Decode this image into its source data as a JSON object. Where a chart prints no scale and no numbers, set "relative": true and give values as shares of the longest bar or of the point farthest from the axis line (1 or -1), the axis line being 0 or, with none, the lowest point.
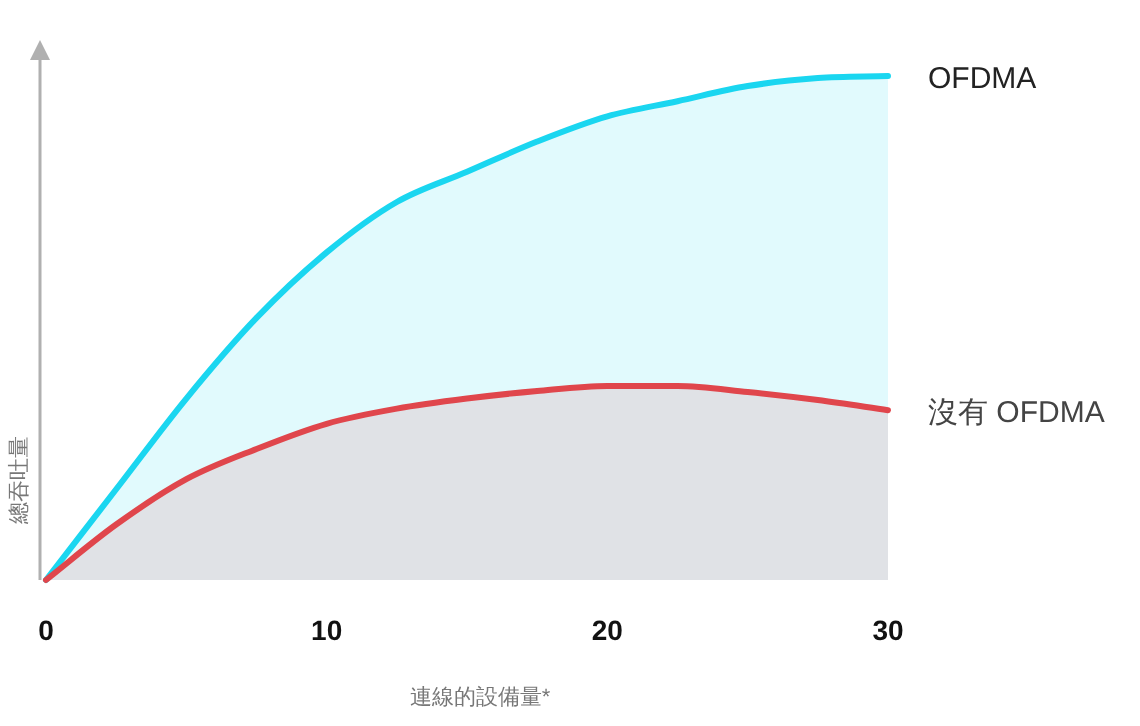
{
  "chart_data": {
    "type": "area",
    "relative": true,
    "xlabel": "連線的設備量*",
    "ylabel": "總吞吐量",
    "x": [
      0,
      2.5,
      5,
      7.5,
      10,
      12.5,
      15,
      17.5,
      20,
      22.5,
      25,
      27.5,
      30
    ],
    "xlim": [
      0,
      30
    ],
    "xticks": [
      0,
      10,
      20,
      30
    ],
    "series": [
      {
        "name": "OFDMA",
        "color": "#1ad6f0",
        "values": [
          0,
          0.18,
          0.36,
          0.52,
          0.65,
          0.75,
          0.81,
          0.87,
          0.92,
          0.95,
          0.98,
          0.996,
          1
        ]
      },
      {
        "name": "沒有 OFDMA",
        "color": "#e0464c",
        "values": [
          0,
          0.11,
          0.2,
          0.26,
          0.31,
          0.34,
          0.36,
          0.375,
          0.385,
          0.385,
          0.373,
          0.357,
          0.337
        ]
      }
    ]
  }
}
